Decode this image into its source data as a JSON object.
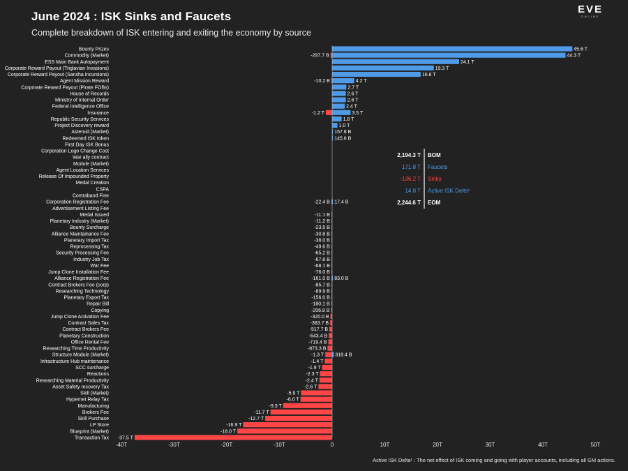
{
  "header": {
    "title": "June 2024 : ISK Sinks and Faucets",
    "subtitle": "Complete breakdown of ISK entering and exiting the economy by source",
    "logo_text": "EVE",
    "logo_subtext": "ONLINE"
  },
  "footnote": "Active ISK Delta¹ : The net effect of ISK coming and going with player accounts, including all GM actions.",
  "colors": {
    "faucet": "#4f9be8",
    "sink": "#ff4545",
    "text": "#ffffff",
    "background": "#222222"
  },
  "summary": [
    {
      "value": "2,194.3 T",
      "label": "BOM",
      "color": "#ffffff",
      "bold": true
    },
    {
      "value": "171.8 T",
      "label": "Faucets",
      "color": "#4f9be8",
      "bold": false
    },
    {
      "value": "-136.2 T",
      "label": "Sinks",
      "color": "#ff4545",
      "bold": false
    },
    {
      "value": "14.8 T",
      "label": "Active ISK Delta¹",
      "color": "#4f9be8",
      "bold": false
    },
    {
      "value": "2,244.6 T",
      "label": "EOM",
      "color": "#ffffff",
      "bold": true
    }
  ],
  "chart_data": {
    "type": "bar",
    "orientation": "horizontal",
    "xlabel": "",
    "ylabel": "",
    "xlim": [
      -40,
      50
    ],
    "x_ticks": [
      -40,
      -30,
      -20,
      -10,
      0,
      10,
      20,
      30,
      40,
      50
    ],
    "x_tick_labels": [
      "-40T",
      "-30T",
      "-20T",
      "-10T",
      "0",
      "10T",
      "20T",
      "30T",
      "40T",
      "50T"
    ],
    "grid": false,
    "series": [
      {
        "name": "Faucets",
        "color": "#4f9be8"
      },
      {
        "name": "Sinks",
        "color": "#ff4545"
      }
    ],
    "rows": [
      {
        "category": "Bounty Prizes",
        "faucet": 45.6,
        "faucet_label": "45.6 T",
        "sink": null,
        "sink_label": ""
      },
      {
        "category": "Commodity (Market)",
        "faucet": 44.3,
        "faucet_label": "44.3 T",
        "sink": -0.2977,
        "sink_label": "-297.7 B"
      },
      {
        "category": "ESS Main Bank Autopayment",
        "faucet": 24.1,
        "faucet_label": "24.1 T",
        "sink": null,
        "sink_label": ""
      },
      {
        "category": "Corporate Reward Payout (Triglavian Invasions)",
        "faucet": 19.3,
        "faucet_label": "19.3 T",
        "sink": null,
        "sink_label": ""
      },
      {
        "category": "Corporate Reward Payout (Sansha Incursions)",
        "faucet": 16.8,
        "faucet_label": "16.8 T",
        "sink": null,
        "sink_label": ""
      },
      {
        "category": "Agent Mission Reward",
        "faucet": 4.2,
        "faucet_label": "4.2 T",
        "sink": -0.0102,
        "sink_label": "-10.2 B"
      },
      {
        "category": "Corporate Reward Payout (Pirate FOBs)",
        "faucet": 2.7,
        "faucet_label": "2.7 T",
        "sink": null,
        "sink_label": ""
      },
      {
        "category": "House of Records",
        "faucet": 2.6,
        "faucet_label": "2.6 T",
        "sink": null,
        "sink_label": ""
      },
      {
        "category": "Ministry of Internal Order",
        "faucet": 2.6,
        "faucet_label": "2.6 T",
        "sink": null,
        "sink_label": ""
      },
      {
        "category": "Federal Intelligence Office",
        "faucet": 2.4,
        "faucet_label": "2.4 T",
        "sink": null,
        "sink_label": ""
      },
      {
        "category": "Insurance",
        "faucet": 3.5,
        "faucet_label": "3.5 T",
        "sink": -1.2,
        "sink_label": "-1.2 T"
      },
      {
        "category": "Republic Security Services",
        "faucet": 1.8,
        "faucet_label": "1.8 T",
        "sink": null,
        "sink_label": ""
      },
      {
        "category": "Project Discovery reward",
        "faucet": 1.0,
        "faucet_label": "1.0 T",
        "sink": null,
        "sink_label": ""
      },
      {
        "category": "Asteroid (Market)",
        "faucet": 0.1578,
        "faucet_label": "157.8 B",
        "sink": null,
        "sink_label": ""
      },
      {
        "category": "Redeemed ISK token",
        "faucet": 0.1456,
        "faucet_label": "145.6 B",
        "sink": null,
        "sink_label": ""
      },
      {
        "category": "First Day ISK Bonus",
        "faucet": null,
        "faucet_label": "",
        "sink": null,
        "sink_label": ""
      },
      {
        "category": "Corporation Logo Change Cost",
        "faucet": null,
        "faucet_label": "",
        "sink": null,
        "sink_label": ""
      },
      {
        "category": "War ally contract",
        "faucet": null,
        "faucet_label": "",
        "sink": null,
        "sink_label": ""
      },
      {
        "category": "Module (Market)",
        "faucet": null,
        "faucet_label": "",
        "sink": null,
        "sink_label": ""
      },
      {
        "category": "Agent Location Services",
        "faucet": null,
        "faucet_label": "",
        "sink": null,
        "sink_label": ""
      },
      {
        "category": "Release Of Impounded Property",
        "faucet": null,
        "faucet_label": "",
        "sink": null,
        "sink_label": ""
      },
      {
        "category": "Medal Creation",
        "faucet": null,
        "faucet_label": "",
        "sink": null,
        "sink_label": ""
      },
      {
        "category": "CSPA",
        "faucet": null,
        "faucet_label": "",
        "sink": null,
        "sink_label": ""
      },
      {
        "category": "Contraband Fine",
        "faucet": null,
        "faucet_label": "",
        "sink": null,
        "sink_label": ""
      },
      {
        "category": "Corporation Registration Fee",
        "faucet": 0.0174,
        "faucet_label": "17.4 B",
        "sink": -0.0224,
        "sink_label": "-22.4 B"
      },
      {
        "category": "Advertisement Listing Fee",
        "faucet": null,
        "faucet_label": "",
        "sink": null,
        "sink_label": ""
      },
      {
        "category": "Medal Issued",
        "faucet": null,
        "faucet_label": "",
        "sink": -0.0111,
        "sink_label": "-11.1 B"
      },
      {
        "category": "Planetary Industry (Market)",
        "faucet": null,
        "faucet_label": "",
        "sink": -0.0112,
        "sink_label": "-11.2 B"
      },
      {
        "category": "Bounty Surcharge",
        "faucet": null,
        "faucet_label": "",
        "sink": -0.0235,
        "sink_label": "-23.5 B"
      },
      {
        "category": "Alliance Maintainance Fee",
        "faucet": null,
        "faucet_label": "",
        "sink": -0.0308,
        "sink_label": "-30.8 B"
      },
      {
        "category": "Planetary Import Tax",
        "faucet": null,
        "faucet_label": "",
        "sink": -0.038,
        "sink_label": "-38.0 B"
      },
      {
        "category": "Reprocessing Tax",
        "faucet": null,
        "faucet_label": "",
        "sink": -0.0496,
        "sink_label": "-49.6 B"
      },
      {
        "category": "Security Processing Fee",
        "faucet": null,
        "faucet_label": "",
        "sink": -0.0652,
        "sink_label": "-65.2 B"
      },
      {
        "category": "Industry Job Tax",
        "faucet": null,
        "faucet_label": "",
        "sink": -0.0678,
        "sink_label": "-67.8 B"
      },
      {
        "category": "War Fee",
        "faucet": null,
        "faucet_label": "",
        "sink": -0.0681,
        "sink_label": "-68.1 B"
      },
      {
        "category": "Jump Clone Installation Fee",
        "faucet": null,
        "faucet_label": "",
        "sink": -0.076,
        "sink_label": "-76.0 B"
      },
      {
        "category": "Alliance Registration Fee",
        "faucet": 0.083,
        "faucet_label": "83.0 B",
        "sink": -0.161,
        "sink_label": "-161.0 B"
      },
      {
        "category": "Contract Brokers Fee (corp)",
        "faucet": null,
        "faucet_label": "",
        "sink": -0.0857,
        "sink_label": "-85.7 B"
      },
      {
        "category": "Researching Technology",
        "faucet": null,
        "faucet_label": "",
        "sink": -0.0899,
        "sink_label": "-89.9 B"
      },
      {
        "category": "Planetary Export Tax",
        "faucet": null,
        "faucet_label": "",
        "sink": -0.156,
        "sink_label": "-156.0 B"
      },
      {
        "category": "Repair Bill",
        "faucet": null,
        "faucet_label": "",
        "sink": -0.1801,
        "sink_label": "-180.1 B"
      },
      {
        "category": "Copying",
        "faucet": null,
        "faucet_label": "",
        "sink": -0.2068,
        "sink_label": "-206.8 B"
      },
      {
        "category": "Jump Clone Activation Fee",
        "faucet": null,
        "faucet_label": "",
        "sink": -0.32,
        "sink_label": "-320.0 B"
      },
      {
        "category": "Contract Sales Tax",
        "faucet": null,
        "faucet_label": "",
        "sink": -0.3837,
        "sink_label": "-383.7 B"
      },
      {
        "category": "Contract Brokers Fee",
        "faucet": null,
        "faucet_label": "",
        "sink": -0.5177,
        "sink_label": "-517.7 B"
      },
      {
        "category": "Planetary Construction",
        "faucet": null,
        "faucet_label": "",
        "sink": -0.6434,
        "sink_label": "-643.4 B"
      },
      {
        "category": "Office Rental Fee",
        "faucet": null,
        "faucet_label": "",
        "sink": -0.7194,
        "sink_label": "-719.4 B"
      },
      {
        "category": "Researching Time Productivity",
        "faucet": null,
        "faucet_label": "",
        "sink": -0.8733,
        "sink_label": "-873.3 B"
      },
      {
        "category": "Structure Module (Market)",
        "faucet": 0.3184,
        "faucet_label": "318.4 B",
        "sink": -1.3,
        "sink_label": "-1.3 T"
      },
      {
        "category": "Infrastructure Hub maintenance",
        "faucet": null,
        "faucet_label": "",
        "sink": -1.4,
        "sink_label": "-1.4 T"
      },
      {
        "category": "SCC surcharge",
        "faucet": null,
        "faucet_label": "",
        "sink": -1.9,
        "sink_label": "-1.9 T"
      },
      {
        "category": "Reactions",
        "faucet": null,
        "faucet_label": "",
        "sink": -2.3,
        "sink_label": "-2.3 T"
      },
      {
        "category": "Researching Material Productivity",
        "faucet": null,
        "faucet_label": "",
        "sink": -2.4,
        "sink_label": "-2.4 T"
      },
      {
        "category": "Asset Safety recovery Tax",
        "faucet": null,
        "faucet_label": "",
        "sink": -2.6,
        "sink_label": "-2.6 T"
      },
      {
        "category": "Skill (Market)",
        "faucet": null,
        "faucet_label": "",
        "sink": -5.9,
        "sink_label": "-5.9 T"
      },
      {
        "category": "Hypernet Relay Tax",
        "faucet": null,
        "faucet_label": "",
        "sink": -6.0,
        "sink_label": "-6.0 T"
      },
      {
        "category": "Manufacturing",
        "faucet": null,
        "faucet_label": "",
        "sink": -9.3,
        "sink_label": "-9.3 T"
      },
      {
        "category": "Brokers Fee",
        "faucet": null,
        "faucet_label": "",
        "sink": -11.7,
        "sink_label": "-11.7 T"
      },
      {
        "category": "Skill Purchase",
        "faucet": null,
        "faucet_label": "",
        "sink": -12.7,
        "sink_label": "-12.7 T"
      },
      {
        "category": "LP Store",
        "faucet": null,
        "faucet_label": "",
        "sink": -16.9,
        "sink_label": "-16.9 T"
      },
      {
        "category": "Blueprint (Market)",
        "faucet": null,
        "faucet_label": "",
        "sink": -18.0,
        "sink_label": "-18.0 T"
      },
      {
        "category": "Transaction Tax",
        "faucet": null,
        "faucet_label": "",
        "sink": -37.5,
        "sink_label": "-37.5 T"
      }
    ]
  }
}
